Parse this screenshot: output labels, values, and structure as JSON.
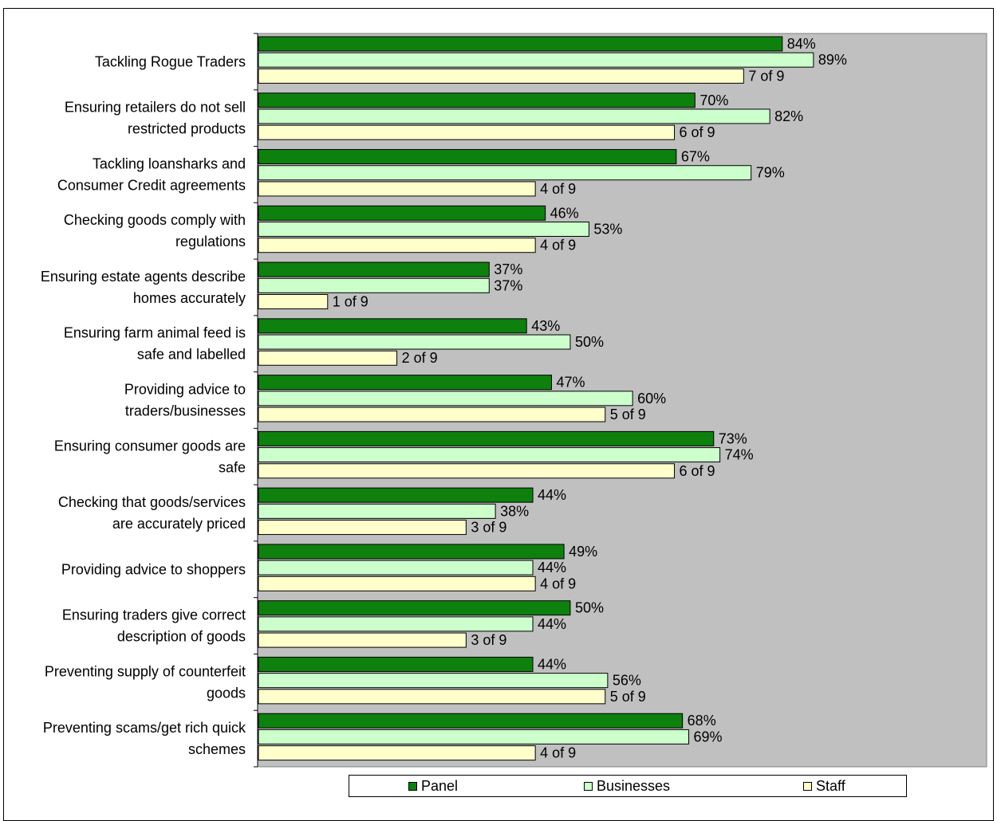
{
  "chart_data": {
    "type": "bar",
    "orientation": "horizontal",
    "categories": [
      "Tackling Rogue Traders",
      "Ensuring retailers do not sell restricted products",
      "Tackling loansharks and Consumer Credit agreements",
      "Checking goods comply with regulations",
      "Ensuring estate agents describe homes accurately",
      "Ensuring farm animal feed is safe and labelled",
      "Providing advice to traders/businesses",
      "Ensuring consumer goods are safe",
      "Checking that goods/services are accurately priced",
      "Providing advice to shoppers",
      "Ensuring traders give correct description of goods",
      "Preventing supply of counterfeit goods",
      "Preventing scams/get rich quick schemes"
    ],
    "category_lines": [
      [
        "Tackling Rogue Traders"
      ],
      [
        "Ensuring retailers do not sell",
        "restricted products"
      ],
      [
        "Tackling loansharks and",
        "Consumer Credit agreements"
      ],
      [
        "Checking goods comply with",
        "regulations"
      ],
      [
        "Ensuring estate agents describe",
        "homes accurately"
      ],
      [
        "Ensuring farm animal feed is",
        "safe and labelled"
      ],
      [
        "Providing advice to",
        "traders/businesses"
      ],
      [
        "Ensuring consumer goods are",
        "safe"
      ],
      [
        "Checking that goods/services",
        "are accurately priced"
      ],
      [
        "Providing advice to shoppers"
      ],
      [
        "Ensuring traders give correct",
        "description of goods"
      ],
      [
        "Preventing supply of counterfeit",
        "goods"
      ],
      [
        "Preventing scams/get rich quick",
        "schemes"
      ]
    ],
    "series": [
      {
        "name": "Panel",
        "color": "#0e800e",
        "values": [
          84,
          70,
          67,
          46,
          37,
          43,
          47,
          73,
          44,
          49,
          50,
          44,
          68
        ],
        "labels": [
          "84%",
          "70%",
          "67%",
          "46%",
          "37%",
          "43%",
          "47%",
          "73%",
          "44%",
          "49%",
          "50%",
          "44%",
          "68%"
        ]
      },
      {
        "name": "Businesses",
        "color": "#ccffcc",
        "values": [
          89,
          82,
          79,
          53,
          37,
          50,
          60,
          74,
          38,
          44,
          44,
          56,
          69
        ],
        "labels": [
          "89%",
          "82%",
          "79%",
          "53%",
          "37%",
          "50%",
          "60%",
          "74%",
          "38%",
          "44%",
          "44%",
          "56%",
          "69%"
        ]
      },
      {
        "name": "Staff",
        "color": "#ffffcc",
        "values": [
          77.8,
          66.7,
          44.4,
          44.4,
          11.1,
          22.2,
          55.6,
          66.7,
          33.3,
          44.4,
          33.3,
          55.6,
          44.4
        ],
        "labels": [
          "7 of 9",
          "6 of 9",
          "4 of 9",
          "4 of 9",
          "1 of 9",
          "2 of 9",
          "5 of 9",
          "6 of 9",
          "3 of 9",
          "4 of 9",
          "3 of 9",
          "5 of 9",
          "4 of 9"
        ]
      }
    ],
    "xlim": [
      0,
      100
    ],
    "plot_background": "#c0c0c0",
    "grid": false,
    "legend_position": "bottom"
  }
}
